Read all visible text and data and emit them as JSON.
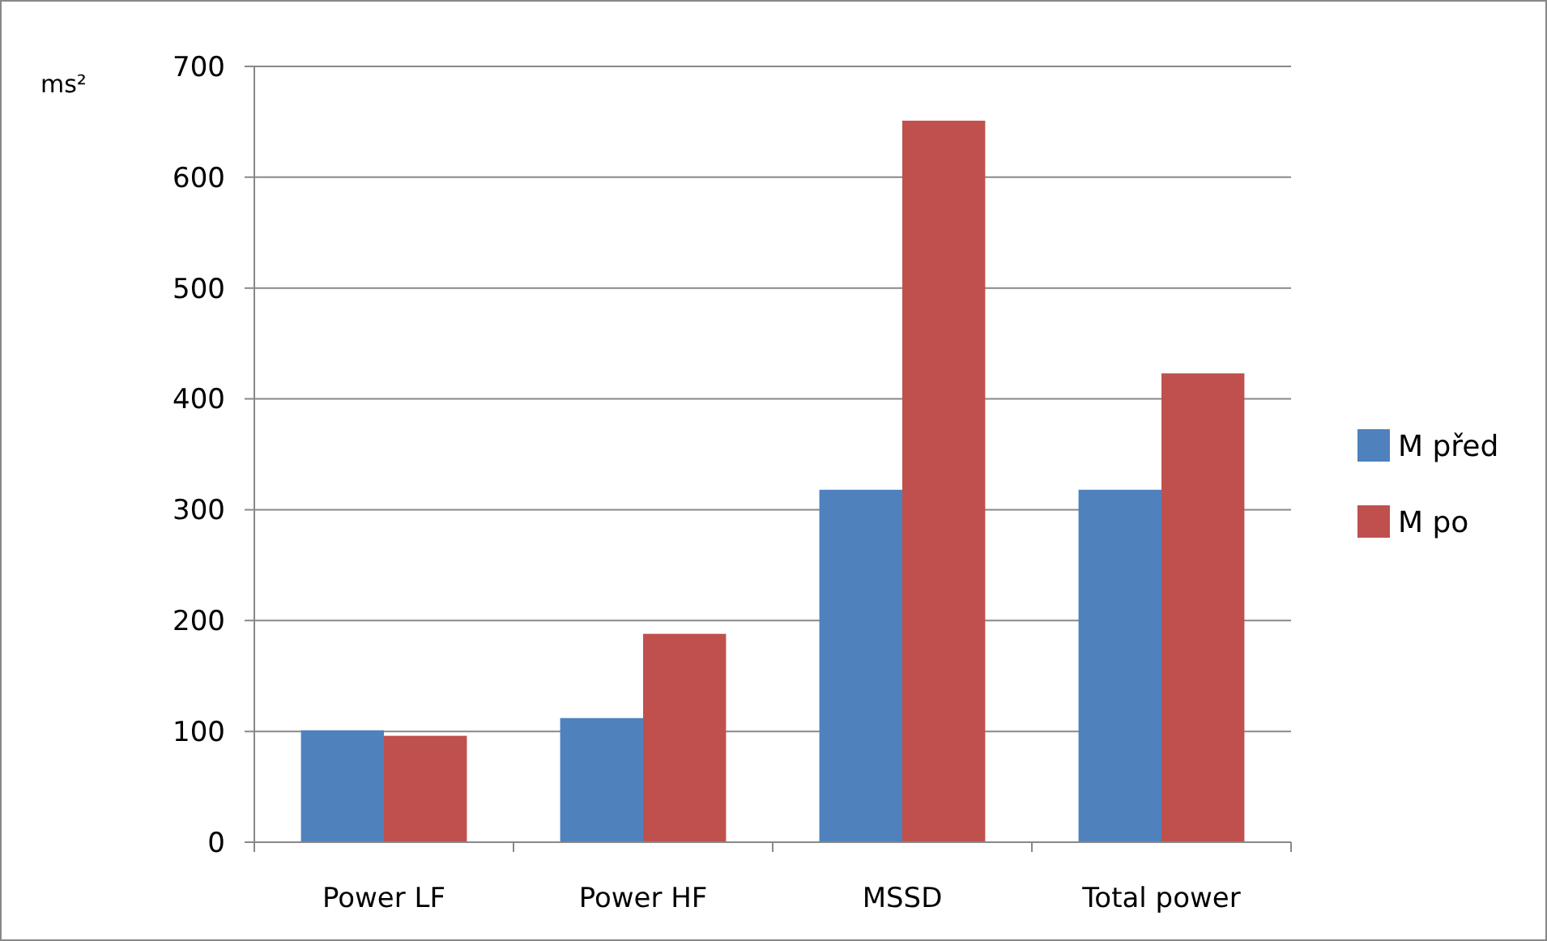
{
  "chart_data": {
    "type": "bar",
    "ylabel": "ms²",
    "categories": [
      "Power LF",
      "Power HF",
      "MSSD",
      "Total power"
    ],
    "series": [
      {
        "name": "M před",
        "color": "#4f81bd",
        "values": [
          101,
          112,
          318,
          318
        ]
      },
      {
        "name": "M po",
        "color": "#c0504d",
        "values": [
          96,
          188,
          651,
          423
        ]
      }
    ],
    "ylim": [
      0,
      700
    ],
    "yticks": [
      0,
      100,
      200,
      300,
      400,
      500,
      600,
      700
    ],
    "grid": "y",
    "legend": "right"
  }
}
